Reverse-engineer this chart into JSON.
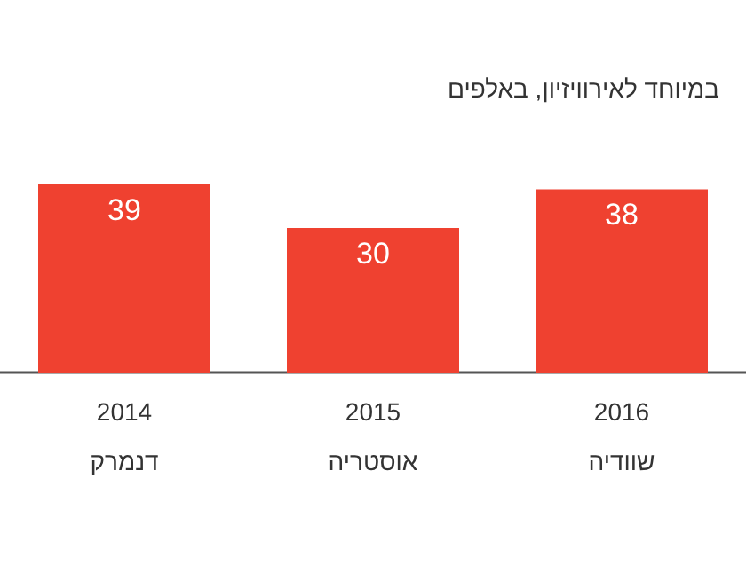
{
  "chart_data": {
    "type": "bar",
    "title": "במיוחד לאירוויזיון, באלפים",
    "categories": [
      "2014\nדנמרק",
      "2015\nאוסטריה",
      "2016\nשוודיה"
    ],
    "values": [
      39,
      30,
      38
    ],
    "color": "#ef4130",
    "data_labels": true
  }
}
